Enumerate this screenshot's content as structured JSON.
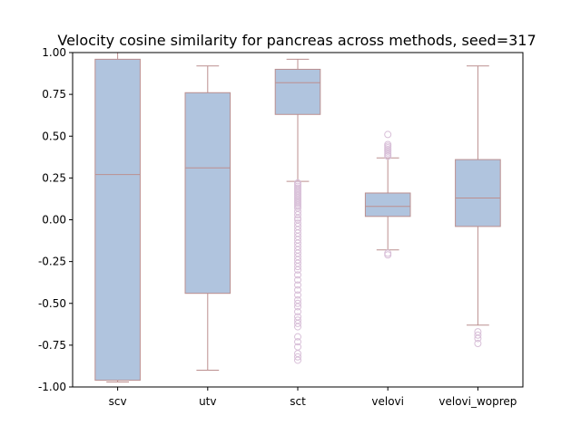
{
  "chart_data": {
    "type": "boxplot",
    "title": "Velocity cosine similarity for pancreas across methods, seed=317",
    "xlabel": "",
    "ylabel": "",
    "ylim": [
      -1.0,
      1.0
    ],
    "yticks": [
      "-1.00",
      "-0.75",
      "-0.50",
      "-0.25",
      "0.00",
      "0.25",
      "0.50",
      "0.75",
      "1.00"
    ],
    "grid": false,
    "categories": [
      "scv",
      "utv",
      "sct",
      "velovi",
      "velovi_woprep"
    ],
    "colors": {
      "box_fill": "#b0c4de",
      "box_edge": "#bc8f8f",
      "outlier_edge": "#d8bfd8"
    },
    "boxes": [
      {
        "name": "scv",
        "whisker_low": -0.97,
        "q1": -0.96,
        "median": 0.27,
        "q3": 0.96,
        "whisker_high": 1.0,
        "outliers": []
      },
      {
        "name": "utv",
        "whisker_low": -0.9,
        "q1": -0.44,
        "median": 0.31,
        "q3": 0.76,
        "whisker_high": 0.92,
        "outliers": []
      },
      {
        "name": "sct",
        "whisker_low": 0.23,
        "q1": 0.63,
        "median": 0.82,
        "q3": 0.9,
        "whisker_high": 0.96,
        "outliers": [
          0.22,
          0.21,
          0.2,
          0.19,
          0.18,
          0.17,
          0.16,
          0.15,
          0.14,
          0.13,
          0.12,
          0.11,
          0.1,
          0.09,
          0.08,
          0.07,
          0.05,
          0.03,
          0.01,
          0.0,
          -0.02,
          -0.04,
          -0.06,
          -0.08,
          -0.1,
          -0.12,
          -0.14,
          -0.16,
          -0.18,
          -0.2,
          -0.22,
          -0.24,
          -0.26,
          -0.28,
          -0.3,
          -0.33,
          -0.36,
          -0.39,
          -0.42,
          -0.45,
          -0.48,
          -0.5,
          -0.52,
          -0.55,
          -0.58,
          -0.6,
          -0.62,
          -0.64,
          -0.7,
          -0.73,
          -0.76,
          -0.8,
          -0.82,
          -0.84
        ]
      },
      {
        "name": "velovi",
        "whisker_low": -0.18,
        "q1": 0.02,
        "median": 0.08,
        "q3": 0.16,
        "whisker_high": 0.37,
        "outliers": [
          0.38,
          0.39,
          0.4,
          0.41,
          0.42,
          0.43,
          0.44,
          0.45,
          0.51,
          -0.2,
          -0.21
        ]
      },
      {
        "name": "velovi_woprep",
        "whisker_low": -0.63,
        "q1": -0.04,
        "median": 0.13,
        "q3": 0.36,
        "whisker_high": 0.92,
        "outliers": [
          -0.67,
          -0.69,
          -0.71,
          -0.74
        ]
      }
    ]
  }
}
